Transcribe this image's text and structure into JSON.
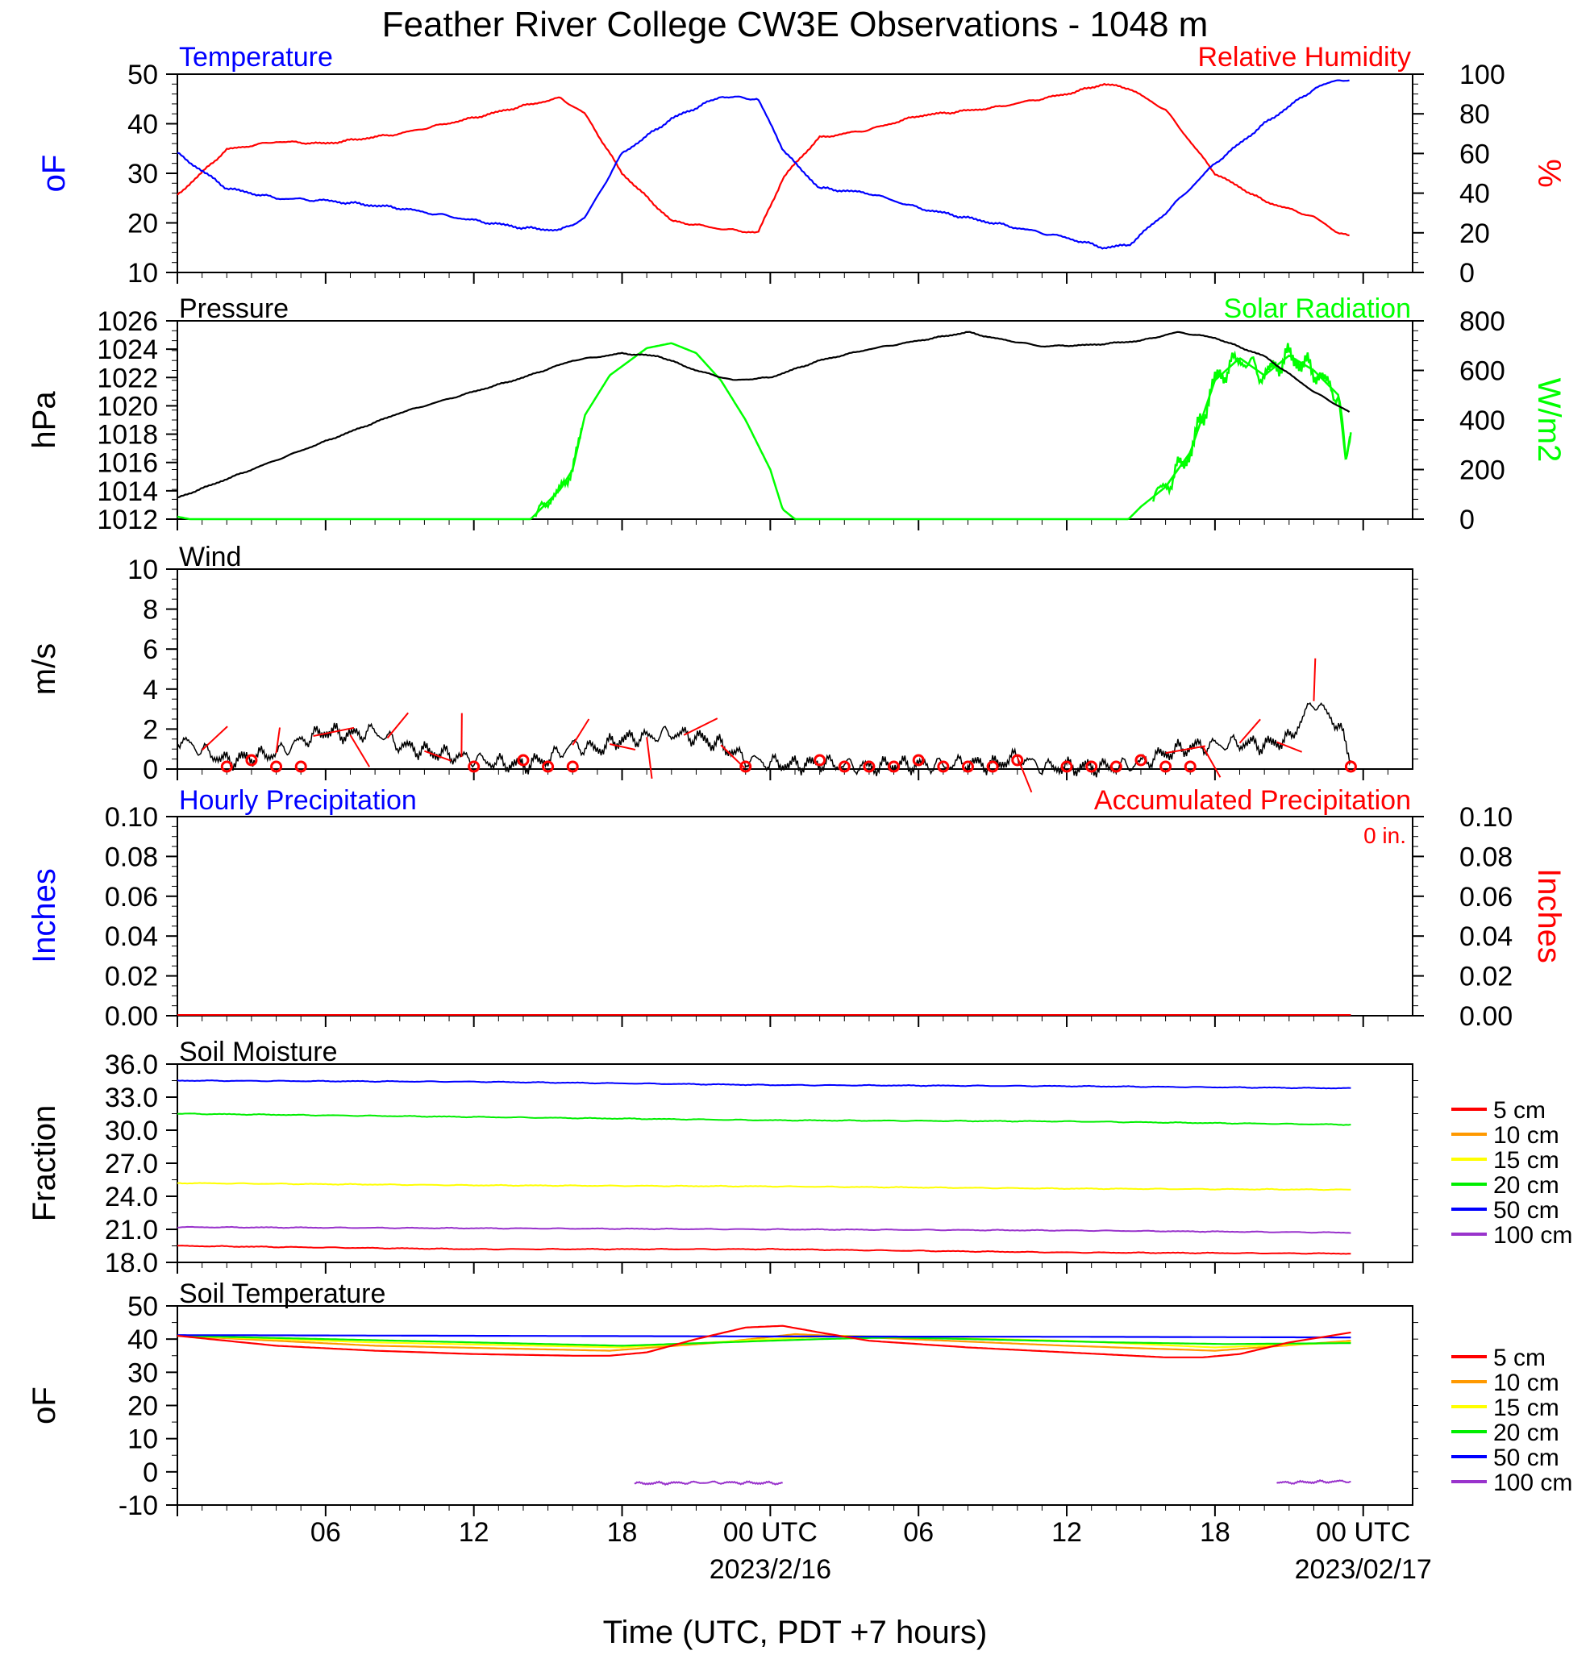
{
  "title": "Feather River College CW3E Observations - 1048 m",
  "x_axis": {
    "label": "Time (UTC, PDT +7 hours)",
    "ticks": [
      "06",
      "12",
      "18",
      "00 UTC",
      "06",
      "12",
      "18",
      "00 UTC"
    ],
    "date_labels": [
      "2023/2/16",
      "2023/02/17"
    ]
  },
  "colors": {
    "temperature": "#0000ff",
    "humidity": "#ff0000",
    "pressure": "#000000",
    "solar": "#00ff00",
    "wind": "#000000",
    "wind_barb": "#ff0000",
    "soil_5": "#ff0000",
    "soil_10": "#ff9900",
    "soil_15": "#ffff00",
    "soil_20": "#00ee00",
    "soil_50": "#0000ff",
    "soil_100": "#9933cc"
  },
  "chart_data": [
    {
      "type": "line",
      "panel": "temperature-humidity",
      "left_title": "Temperature",
      "right_title": "Relative Humidity",
      "ylabel_left": "oF",
      "ylabel_right": "%",
      "ylim_left": [
        10,
        50
      ],
      "ylim_right": [
        0,
        100
      ],
      "yticks_left": [
        "10",
        "20",
        "30",
        "40",
        "50"
      ],
      "yticks_right": [
        "0",
        "20",
        "40",
        "60",
        "80",
        "100"
      ],
      "x_hours": [
        0,
        2,
        4,
        6,
        9,
        12,
        14,
        15.5,
        16.5,
        18,
        20,
        22,
        23.5,
        24.5,
        25,
        26,
        28,
        30,
        33,
        36,
        37.5,
        38.5,
        40,
        42,
        44,
        46,
        47,
        47.5
      ],
      "series": [
        {
          "name": "Temperature",
          "axis": "left",
          "values": [
            34,
            27,
            25,
            24.5,
            23,
            20.5,
            19,
            18.5,
            21,
            34,
            41,
            45.5,
            45,
            35,
            32,
            27,
            26,
            23,
            20,
            17,
            15,
            15.5,
            22,
            32,
            40,
            47,
            49,
            48.5
          ]
        },
        {
          "name": "Relative Humidity",
          "axis": "right",
          "values": [
            39,
            62,
            66,
            65,
            70,
            78,
            84,
            88,
            80,
            50,
            26,
            22,
            20,
            47,
            55,
            68,
            72,
            79,
            83,
            90,
            95,
            93,
            82,
            50,
            36,
            28,
            20,
            18
          ]
        }
      ]
    },
    {
      "type": "line",
      "panel": "pressure-solar",
      "left_title": "Pressure",
      "right_title": "Solar Radiation",
      "ylabel_left": "hPa",
      "ylabel_right": "W/m2",
      "ylim_left": [
        1012,
        1026
      ],
      "ylim_right": [
        0,
        800
      ],
      "yticks_left": [
        "1012",
        "1014",
        "1016",
        "1018",
        "1020",
        "1022",
        "1024",
        "1026"
      ],
      "yticks_right": [
        "0",
        "200",
        "400",
        "600",
        "800"
      ],
      "series": [
        {
          "name": "Pressure",
          "axis": "left",
          "x_hours": [
            0,
            3,
            6,
            9,
            12,
            14,
            16,
            18,
            19.5,
            21,
            22.5,
            24,
            26,
            28,
            30,
            32,
            33,
            35,
            37,
            39,
            40.5,
            42,
            44,
            46,
            47.5
          ],
          "values": [
            1013.5,
            1015.5,
            1017.5,
            1019.5,
            1021,
            1022,
            1023.2,
            1023.7,
            1023.5,
            1022.5,
            1021.8,
            1022,
            1023.2,
            1024,
            1024.6,
            1025.2,
            1024.8,
            1024.2,
            1024.3,
            1024.6,
            1025.2,
            1024.8,
            1023.5,
            1021,
            1019.5
          ]
        },
        {
          "name": "Solar Radiation",
          "axis": "right",
          "x_hours": [
            0,
            0.5,
            14.3,
            15,
            15.5,
            16,
            16.5,
            17.5,
            19,
            20,
            21,
            22,
            23,
            24,
            24.5,
            25,
            38.5,
            39,
            40,
            41,
            42,
            43,
            44,
            45,
            46,
            47,
            47.3,
            47.5
          ],
          "values": [
            10,
            0,
            0,
            70,
            120,
            200,
            420,
            580,
            690,
            710,
            670,
            560,
            400,
            200,
            40,
            0,
            0,
            50,
            130,
            270,
            560,
            650,
            580,
            660,
            600,
            500,
            230,
            360
          ]
        }
      ]
    },
    {
      "type": "line",
      "panel": "wind",
      "title": "Wind",
      "ylabel": "m/s",
      "ylim": [
        0,
        10
      ],
      "yticks": [
        "0",
        "2",
        "4",
        "6",
        "8",
        "10"
      ],
      "x_hours": [
        0,
        2,
        4,
        5,
        6,
        7,
        8,
        9,
        10,
        11,
        12,
        13,
        14,
        15,
        16,
        17,
        18,
        19,
        20,
        21,
        22,
        23,
        24,
        25,
        26,
        27,
        28,
        29,
        30,
        31,
        32,
        33,
        34,
        35,
        36,
        37,
        38,
        39,
        40,
        41,
        42,
        43,
        44,
        45,
        46,
        47,
        47.5
      ],
      "values": [
        1.5,
        0.4,
        0.8,
        1.4,
        1.9,
        1.7,
        1.9,
        1.2,
        0.9,
        0.7,
        0.5,
        0.3,
        0.2,
        0.5,
        1.2,
        1.0,
        1.5,
        1.6,
        1.8,
        1.6,
        1.2,
        0.5,
        0.3,
        0.2,
        0.3,
        0.2,
        0.1,
        0.2,
        0.2,
        0.2,
        0.3,
        0.2,
        0.6,
        0.1,
        0.1,
        0.1,
        0.1,
        0.3,
        0.8,
        1.1,
        1.2,
        1.3,
        1.2,
        1.5,
        3.4,
        2.2,
        0.5
      ],
      "calm_markers_hours": [
        2,
        3,
        4,
        5,
        12,
        14,
        15,
        16,
        23,
        26,
        27,
        28,
        29,
        30,
        31,
        32,
        33,
        34,
        36,
        37,
        38,
        39,
        40,
        41,
        47.5
      ]
    },
    {
      "type": "line",
      "panel": "precipitation",
      "left_title": "Hourly Precipitation",
      "right_title": "Accumulated Precipitation",
      "annotation": "0 in.",
      "ylabel_left": "Inches",
      "ylabel_right": "Inches",
      "ylim": [
        0,
        0.1
      ],
      "yticks": [
        "0.00",
        "0.02",
        "0.04",
        "0.06",
        "0.08",
        "0.10"
      ],
      "x_hours": [
        0,
        47.5
      ],
      "series": [
        {
          "name": "Hourly Precipitation",
          "values": [
            0,
            0
          ]
        },
        {
          "name": "Accumulated Precipitation",
          "values": [
            0,
            0
          ]
        }
      ]
    },
    {
      "type": "line",
      "panel": "soil-moisture",
      "title": "Soil Moisture",
      "ylabel": "Fraction",
      "ylim": [
        18,
        36
      ],
      "yticks": [
        "18.0",
        "21.0",
        "24.0",
        "27.0",
        "30.0",
        "33.0",
        "36.0"
      ],
      "x_hours": [
        0,
        12,
        24,
        36,
        47.5
      ],
      "legend": [
        "5 cm",
        "10 cm",
        "15 cm",
        "20 cm",
        "50 cm",
        "100 cm"
      ],
      "series": [
        {
          "name": "5 cm",
          "values": [
            19.5,
            19.2,
            19.2,
            18.9,
            18.8
          ]
        },
        {
          "name": "15 cm",
          "values": [
            25.2,
            25.0,
            24.9,
            24.7,
            24.6
          ]
        },
        {
          "name": "20 cm",
          "values": [
            31.5,
            31.2,
            30.9,
            30.8,
            30.5
          ]
        },
        {
          "name": "50 cm",
          "values": [
            34.5,
            34.4,
            34.1,
            34.0,
            33.8
          ]
        },
        {
          "name": "100 cm",
          "values": [
            21.2,
            21.1,
            21.0,
            20.9,
            20.7
          ]
        }
      ]
    },
    {
      "type": "line",
      "panel": "soil-temperature",
      "title": "Soil Temperature",
      "ylabel": "oF",
      "ylim": [
        -10,
        50
      ],
      "yticks": [
        "-10",
        "0",
        "10",
        "20",
        "30",
        "40",
        "50"
      ],
      "legend": [
        "5 cm",
        "10 cm",
        "15 cm",
        "20 cm",
        "50 cm",
        "100 cm"
      ],
      "series": [
        {
          "name": "5 cm",
          "x_hours": [
            0,
            4,
            8,
            12,
            16,
            17.5,
            19,
            21,
            23,
            24.5,
            26,
            28,
            32,
            36,
            40,
            41.5,
            43,
            45,
            47.5
          ],
          "values": [
            41,
            38,
            36.5,
            35.5,
            35,
            35,
            36,
            40,
            43.5,
            44,
            42,
            39.5,
            37.5,
            36,
            34.5,
            34.5,
            35.5,
            39,
            42
          ]
        },
        {
          "name": "10 cm",
          "x_hours": [
            0,
            8,
            17.5,
            22,
            25,
            28,
            36,
            42,
            47.5
          ],
          "values": [
            41,
            38,
            36.5,
            39,
            41.5,
            40.5,
            38,
            36.5,
            39.5
          ]
        },
        {
          "name": "15 cm",
          "x_hours": [
            0,
            8,
            18,
            24,
            27,
            36,
            42,
            47.5
          ],
          "values": [
            41,
            39,
            37.5,
            40,
            41,
            39.5,
            37.5,
            39
          ]
        },
        {
          "name": "20 cm",
          "x_hours": [
            0,
            9,
            18,
            26,
            29,
            38,
            42.5,
            47.5
          ],
          "values": [
            41,
            39.5,
            38,
            40,
            40.5,
            39,
            38.5,
            38.8
          ]
        },
        {
          "name": "50 cm",
          "x_hours": [
            0,
            12,
            24,
            36,
            47.5
          ],
          "values": [
            41.2,
            41,
            40.8,
            40.7,
            40.5
          ]
        },
        {
          "name": "100 cm",
          "x_hours": [
            18.5,
            21.5,
            24.5,
            44.5,
            47.5
          ],
          "values": [
            -3.5,
            -3.2,
            -3.4,
            -3.3,
            -2.8
          ]
        }
      ]
    }
  ]
}
